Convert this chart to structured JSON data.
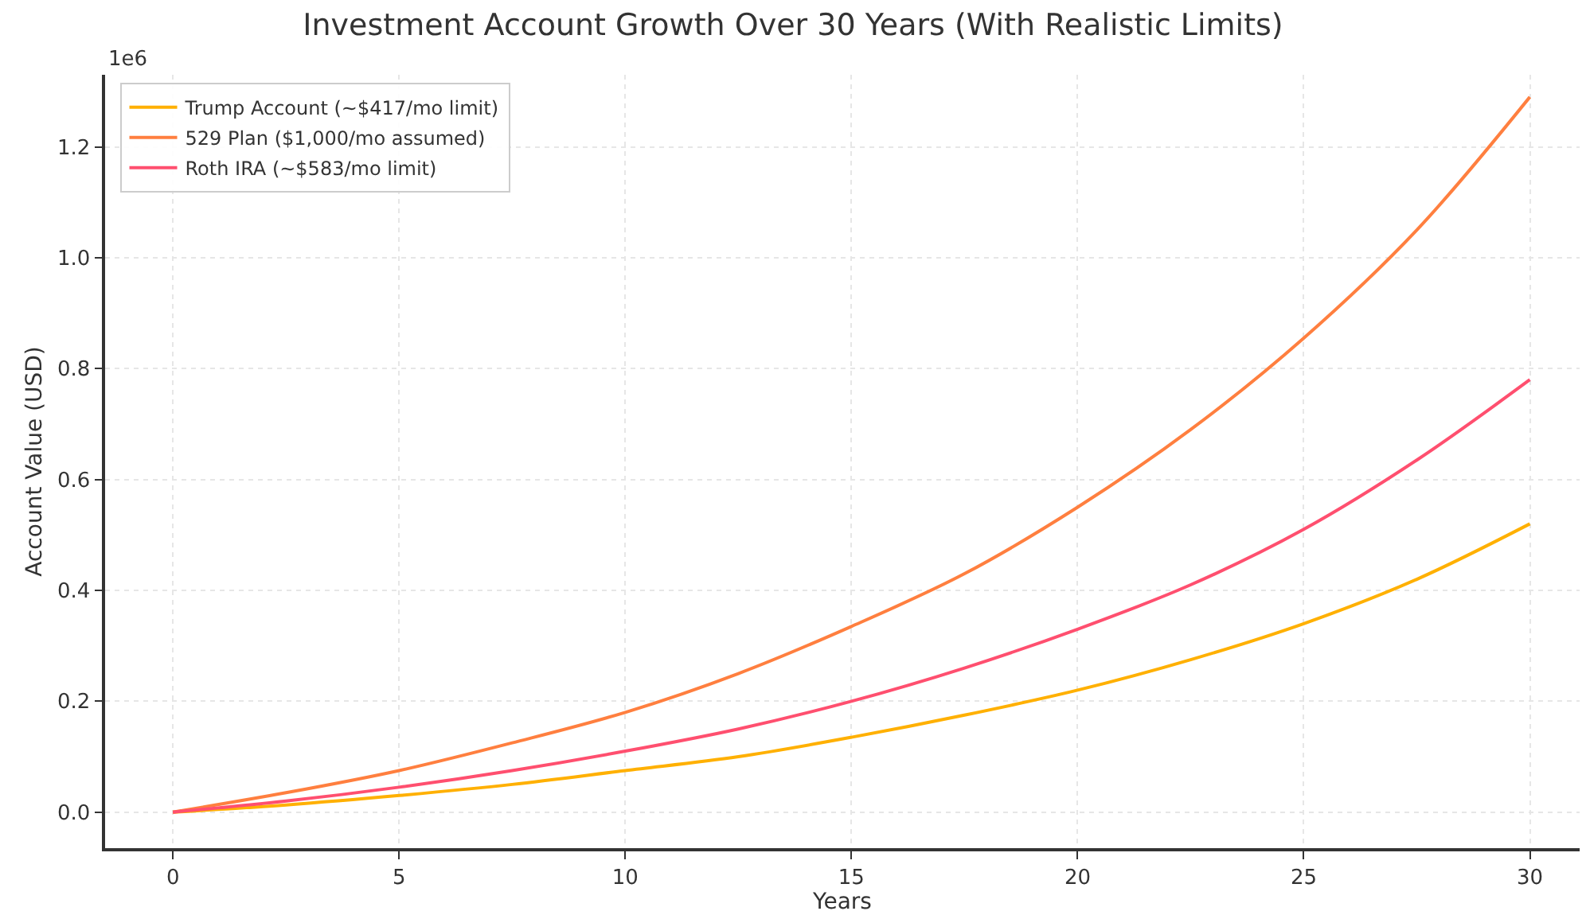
{
  "chart_data": {
    "type": "line",
    "title": "Investment Account Growth Over 30 Years (With Realistic Limits)",
    "xlabel": "Years",
    "ylabel": "Account Value (USD)",
    "annotations": [
      "1e6"
    ],
    "x": [
      0,
      2.5,
      5,
      7.5,
      10,
      12.5,
      15,
      17.5,
      20,
      22.5,
      25,
      27.5,
      30
    ],
    "series": [
      {
        "name": "Trump Account (~$417/mo limit)",
        "color": "#ffb000",
        "values": [
          0,
          0.013,
          0.03,
          0.05,
          0.075,
          0.1,
          0.135,
          0.175,
          0.22,
          0.275,
          0.34,
          0.42,
          0.52
        ]
      },
      {
        "name": "529 Plan ($1,000/mo assumed)",
        "color": "#ff7f3f",
        "values": [
          0,
          0.035,
          0.075,
          0.125,
          0.18,
          0.25,
          0.335,
          0.43,
          0.55,
          0.69,
          0.855,
          1.05,
          1.29
        ]
      },
      {
        "name": "Roth IRA (~$583/mo limit)",
        "color": "#ff4f6f",
        "values": [
          0,
          0.02,
          0.045,
          0.075,
          0.11,
          0.15,
          0.2,
          0.26,
          0.33,
          0.41,
          0.51,
          0.635,
          0.78
        ]
      }
    ],
    "xlim": [
      -1.5,
      31.1
    ],
    "xticks": [
      0,
      5,
      10,
      15,
      20,
      25,
      30
    ],
    "ylim": [
      -0.065,
      1.33
    ],
    "yticks": [
      {
        "value": 0,
        "label": "0.0"
      },
      0.2,
      0.4,
      0.6,
      0.8,
      {
        "value": 1,
        "label": "1.0"
      },
      1.2
    ],
    "grid": true,
    "legend": "top left",
    "line_style": "solid"
  }
}
